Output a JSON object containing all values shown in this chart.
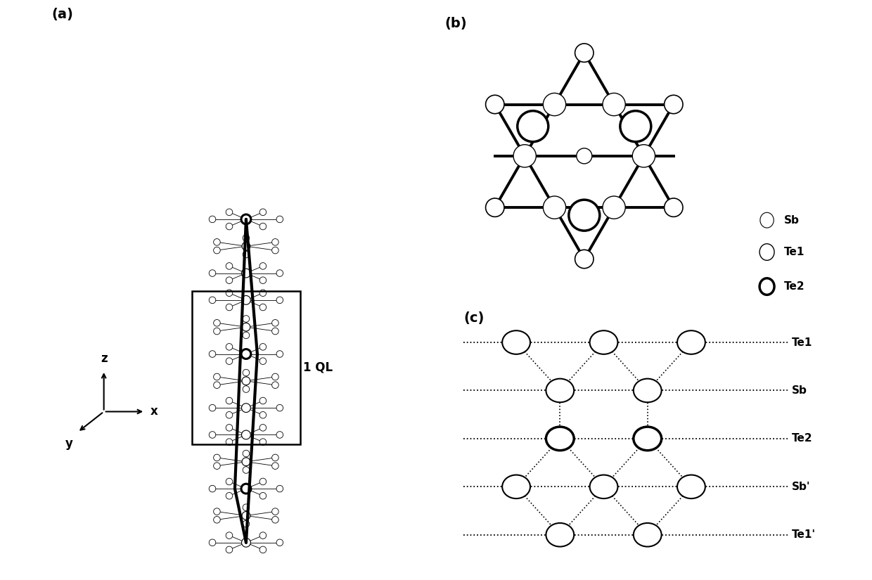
{
  "bg_color": "#ffffff",
  "panel_a_label": "(a)",
  "panel_b_label": "(b)",
  "panel_c_label": "(c)",
  "ql_label": "1 QL",
  "c_layer_labels": [
    "Te1",
    "Sb",
    "Te2",
    "Sb'",
    "Te1'"
  ],
  "legend_labels": [
    "Sb",
    "Te1",
    "Te2"
  ],
  "axes_font": 12,
  "label_font": 14
}
